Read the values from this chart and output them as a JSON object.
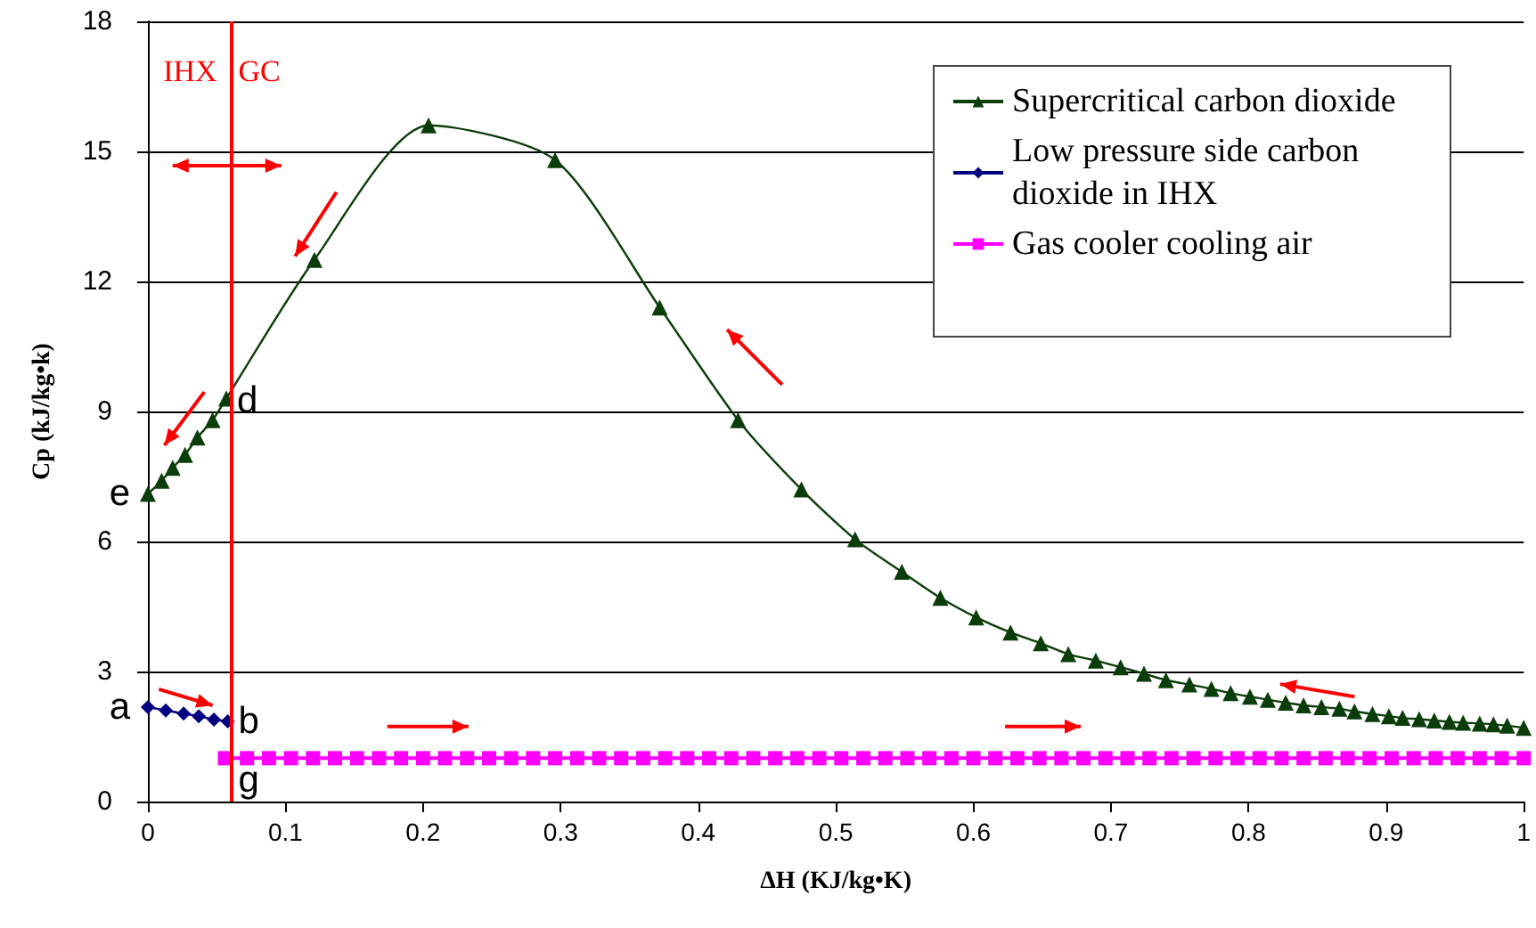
{
  "chart_data": {
    "type": "line",
    "xlabel": "ΔH (KJ/kg•K)",
    "ylabel": "Cp (kJ/kg•k)",
    "xlim": [
      0,
      1
    ],
    "xticks": [
      0,
      0.1,
      0.2,
      0.3,
      0.4,
      0.5,
      0.6,
      0.7,
      0.8,
      0.9,
      1
    ],
    "ylim": [
      0,
      18
    ],
    "yticks": [
      0,
      3,
      6,
      9,
      12,
      15,
      18
    ],
    "grid": "y",
    "legend": "top right",
    "line_style": "solid",
    "series": [
      {
        "name": "Supercritical carbon dioxide",
        "color": "#0b3d0b",
        "marker": "triangle",
        "x": [
          0,
          0.01,
          0.018,
          0.027,
          0.036,
          0.047,
          0.057,
          0.121,
          0.204,
          0.296,
          0.372,
          0.429,
          0.475,
          0.514,
          0.548,
          0.576,
          0.602,
          0.627,
          0.649,
          0.669,
          0.689,
          0.707,
          0.724,
          0.74,
          0.757,
          0.773,
          0.787,
          0.801,
          0.814,
          0.827,
          0.84,
          0.853,
          0.866,
          0.877,
          0.89,
          0.902,
          0.912,
          0.924,
          0.935,
          0.946,
          0.956,
          0.968,
          0.978,
          0.988,
          1.0
        ],
        "values": [
          7.1,
          7.4,
          7.7,
          8.0,
          8.4,
          8.8,
          9.3,
          12.5,
          15.6,
          14.8,
          11.4,
          8.8,
          7.2,
          6.05,
          5.3,
          4.7,
          4.25,
          3.9,
          3.65,
          3.4,
          3.25,
          3.1,
          2.95,
          2.8,
          2.7,
          2.6,
          2.5,
          2.42,
          2.35,
          2.28,
          2.22,
          2.18,
          2.14,
          2.08,
          2.02,
          1.97,
          1.93,
          1.9,
          1.87,
          1.84,
          1.82,
          1.8,
          1.78,
          1.75,
          1.7
        ]
      },
      {
        "name": "Low pressure side carbon dioxide in IHX",
        "color": "#000080",
        "marker": "diamond",
        "x": [
          0,
          0.013,
          0.026,
          0.037,
          0.048,
          0.058
        ],
        "values": [
          2.18,
          2.1,
          2.03,
          1.97,
          1.89,
          1.85
        ]
      },
      {
        "name": "Gas cooler cooling air",
        "color": "#ff00ff",
        "marker": "square",
        "x": [
          0.056,
          0.072,
          0.088,
          0.104,
          0.12,
          0.136,
          0.152,
          0.168,
          0.184,
          0.2,
          0.216,
          0.232,
          0.248,
          0.264,
          0.28,
          0.296,
          0.312,
          0.328,
          0.344,
          0.36,
          0.376,
          0.392,
          0.408,
          0.424,
          0.44,
          0.456,
          0.472,
          0.488,
          0.504,
          0.52,
          0.536,
          0.552,
          0.568,
          0.584,
          0.6,
          0.616,
          0.632,
          0.648,
          0.664,
          0.68,
          0.696,
          0.712,
          0.728,
          0.744,
          0.76,
          0.776,
          0.792,
          0.808,
          0.824,
          0.84,
          0.856,
          0.872,
          0.888,
          0.904,
          0.92,
          0.936,
          0.952,
          0.968,
          0.984,
          1.0
        ],
        "values": [
          1,
          1,
          1,
          1,
          1,
          1,
          1,
          1,
          1,
          1,
          1,
          1,
          1,
          1,
          1,
          1,
          1,
          1,
          1,
          1,
          1,
          1,
          1,
          1,
          1,
          1,
          1,
          1,
          1,
          1,
          1,
          1,
          1,
          1,
          1,
          1,
          1,
          1,
          1,
          1,
          1,
          1,
          1,
          1,
          1,
          1,
          1,
          1,
          1,
          1,
          1,
          1,
          1,
          1,
          1,
          1,
          1,
          1,
          1,
          1
        ]
      }
    ],
    "ref_lines": [
      {
        "axis": "x",
        "value": 0.058,
        "color": "#ff0000"
      }
    ],
    "annotations": [
      "IHX",
      "GC",
      {
        "text": "a",
        "x": 0,
        "y": 2.18
      },
      {
        "text": "b",
        "x": 0.058,
        "y": 1.85
      },
      {
        "text": "d",
        "x": 0.057,
        "y": 9.25
      },
      {
        "text": "e",
        "x": 0,
        "y": 7.11
      },
      {
        "text": "g",
        "x": 0.058,
        "y": 0.5
      }
    ]
  }
}
